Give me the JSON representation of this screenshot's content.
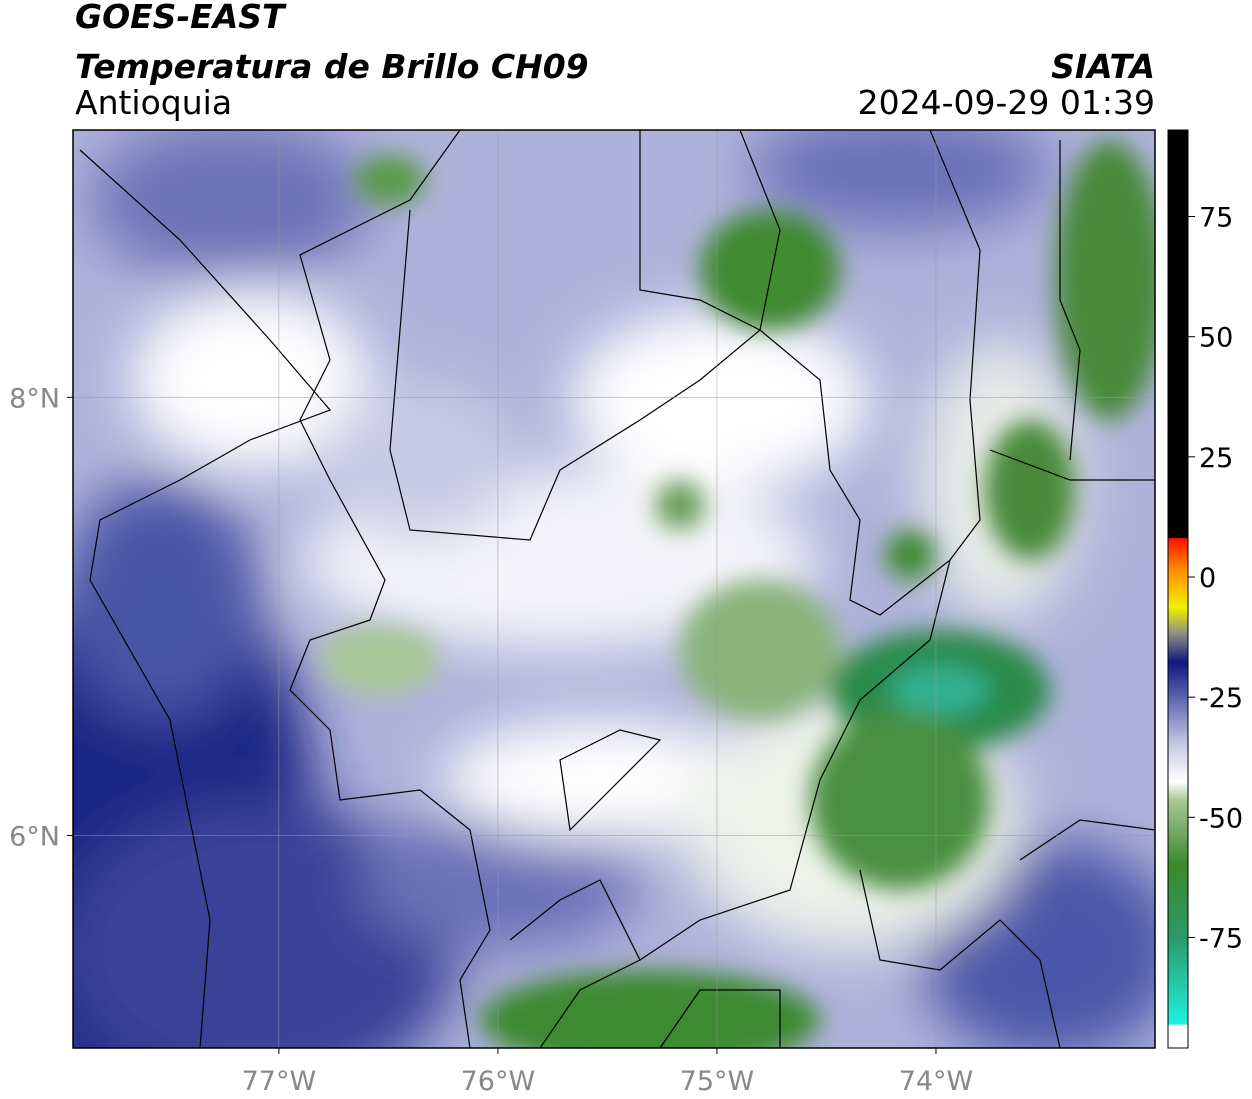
{
  "header": {
    "satellite": "GOES-EAST",
    "product": "Temperatura de Brillo CH09",
    "region": "Antioquia",
    "source": "SIATA",
    "datetime": "2024-09-29 01:39"
  },
  "map": {
    "xlim": [
      -77.94,
      -73.0
    ],
    "ylim": [
      5.03,
      9.22
    ],
    "xticks": [
      {
        "value": -77,
        "label": "77°W"
      },
      {
        "value": -76,
        "label": "76°W"
      },
      {
        "value": -75,
        "label": "75°W"
      },
      {
        "value": -74,
        "label": "74°W"
      }
    ],
    "yticks": [
      {
        "value": 8,
        "label": "8°N"
      },
      {
        "value": 6,
        "label": "6°N"
      }
    ]
  },
  "colorbar": {
    "lim": [
      -98,
      93
    ],
    "ticks": [
      75,
      50,
      25,
      0,
      -25,
      -50,
      -75
    ]
  }
}
